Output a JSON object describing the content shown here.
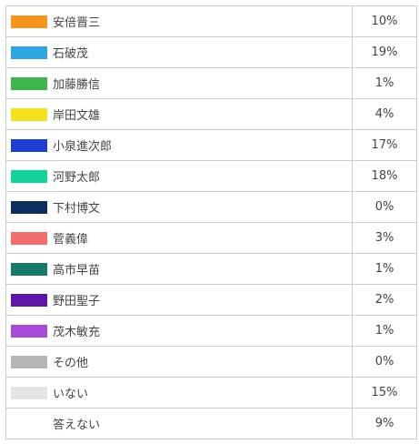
{
  "chart_data": {
    "type": "table",
    "rows": [
      {
        "name": "安倍晋三",
        "value": 10,
        "label": "10%",
        "color": "#f7941d"
      },
      {
        "name": "石破茂",
        "value": 19,
        "label": "19%",
        "color": "#2ea7e0"
      },
      {
        "name": "加藤勝信",
        "value": 1,
        "label": "1%",
        "color": "#3cb54a"
      },
      {
        "name": "岸田文雄",
        "value": 4,
        "label": "4%",
        "color": "#f2e11b"
      },
      {
        "name": "小泉進次郎",
        "value": 17,
        "label": "17%",
        "color": "#1c3fd0"
      },
      {
        "name": "河野太郎",
        "value": 18,
        "label": "18%",
        "color": "#13d39a"
      },
      {
        "name": "下村博文",
        "value": 0,
        "label": "0%",
        "color": "#0f2f5e"
      },
      {
        "name": "菅義偉",
        "value": 3,
        "label": "3%",
        "color": "#f26d6d"
      },
      {
        "name": "高市早苗",
        "value": 1,
        "label": "1%",
        "color": "#187a6a"
      },
      {
        "name": "野田聖子",
        "value": 2,
        "label": "2%",
        "color": "#5d16a8"
      },
      {
        "name": "茂木敏充",
        "value": 1,
        "label": "1%",
        "color": "#a54bd8"
      },
      {
        "name": "その他",
        "value": 0,
        "label": "0%",
        "color": "#b5b5b5"
      },
      {
        "name": "いない",
        "value": 15,
        "label": "15%",
        "color": "#e4e4e4"
      },
      {
        "name": "答えない",
        "value": 9,
        "label": "9%",
        "color": "#ffffff"
      }
    ]
  }
}
